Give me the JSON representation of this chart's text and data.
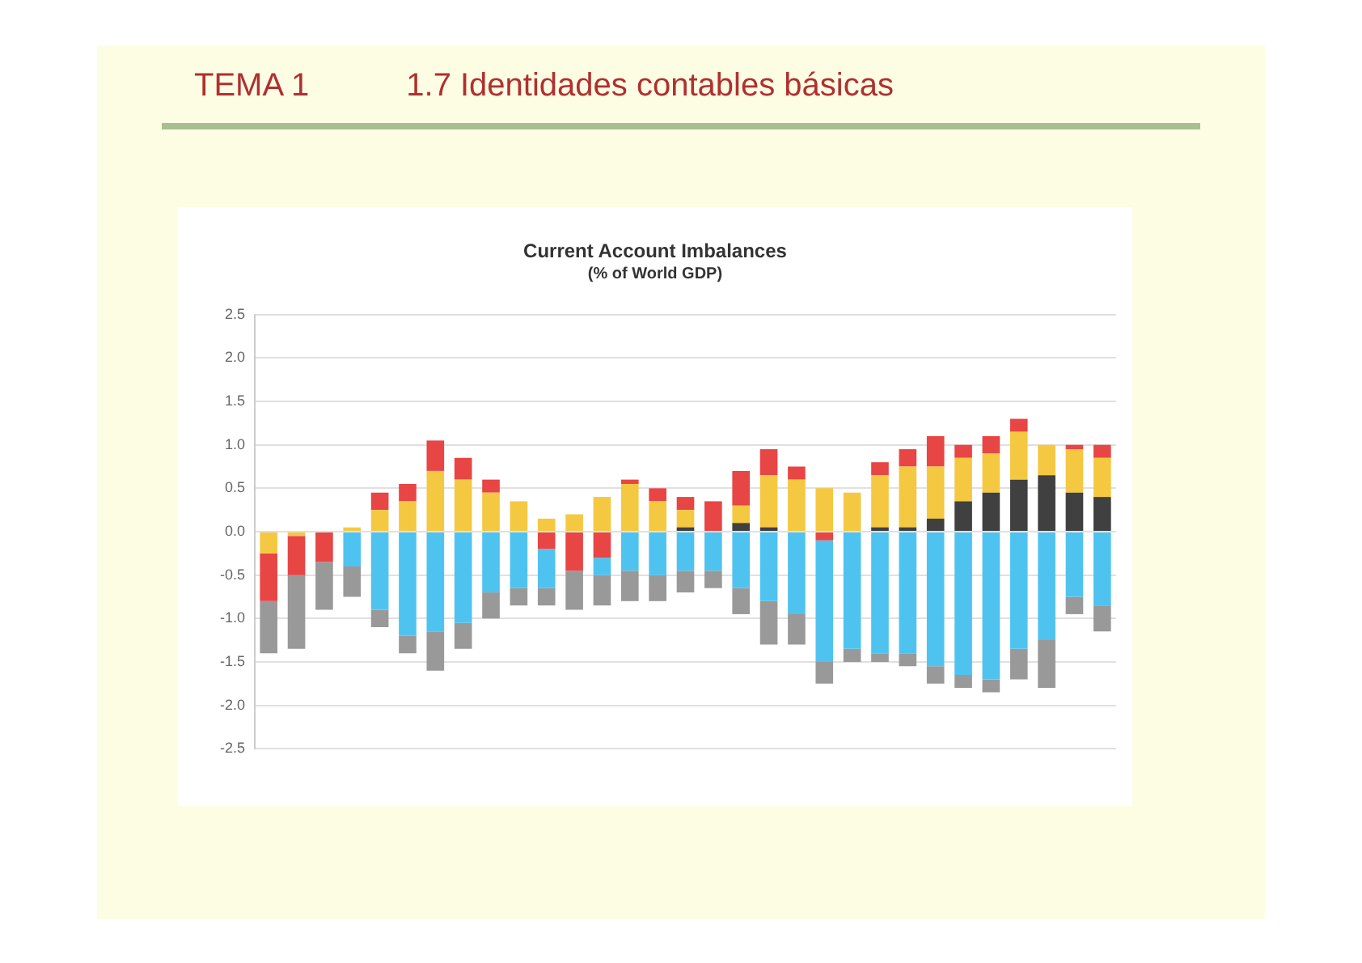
{
  "chart_data": {
    "type": "bar",
    "title": "Current Account Imbalances",
    "subtitle": "(% of World GDP)",
    "annotations": [
      "TEMA 1",
      "1.7 Identidades contables básicas"
    ],
    "stacked": true,
    "grid": "y",
    "ylim": [
      -2.5,
      2.5
    ],
    "yticks": [
      -2.5,
      {
        "value": -2,
        "label": "-2.0"
      },
      -1.5,
      {
        "value": -1,
        "label": "-1.0"
      },
      -0.5,
      {
        "value": 0,
        "label": "0.0"
      },
      0.5,
      {
        "value": 1,
        "label": "1.0"
      },
      1.5,
      {
        "value": 2,
        "label": "2.0"
      },
      2.5
    ],
    "categories": [
      null,
      null,
      null,
      null,
      null,
      null,
      null,
      null,
      null,
      null,
      null,
      null,
      null,
      null,
      null,
      null,
      null,
      null,
      null,
      null,
      null,
      null,
      null,
      null,
      null,
      null,
      null,
      null,
      null,
      null,
      null
    ],
    "series": [
      {
        "color": "#404040",
        "values": [
          null,
          null,
          null,
          null,
          null,
          null,
          null,
          null,
          null,
          null,
          null,
          null,
          null,
          null,
          null,
          0.05,
          null,
          0.1,
          0.05,
          null,
          null,
          null,
          0.05,
          0.05,
          0.15,
          0.35,
          0.45,
          0.6,
          0.65,
          0.45,
          0.4
        ]
      },
      {
        "color": "#f5c842",
        "values": [
          -0.25,
          -0.05,
          null,
          0.05,
          0.25,
          0.35,
          0.7,
          0.6,
          0.45,
          0.35,
          0.15,
          0.2,
          0.4,
          0.55,
          0.35,
          0.2,
          null,
          0.2,
          0.6,
          0.6,
          0.5,
          0.45,
          0.6,
          0.7,
          0.6,
          0.5,
          0.45,
          0.55,
          0.35,
          0.5,
          0.45
        ]
      },
      {
        "color": "#e84545",
        "values": [
          -0.55,
          -0.45,
          -0.35,
          null,
          0.2,
          0.2,
          0.35,
          0.25,
          0.15,
          null,
          -0.2,
          -0.45,
          -0.3,
          0.05,
          0.15,
          0.15,
          0.35,
          0.4,
          0.3,
          0.15,
          -0.1,
          null,
          0.15,
          0.2,
          0.35,
          0.15,
          0.2,
          0.15,
          null,
          0.05,
          0.15
        ]
      },
      {
        "color": "#4fc3f0",
        "values": [
          null,
          null,
          null,
          -0.4,
          -0.9,
          -1.2,
          -1.15,
          -1.05,
          -0.7,
          -0.65,
          -0.45,
          null,
          -0.2,
          -0.45,
          -0.5,
          -0.45,
          -0.45,
          -0.65,
          -0.8,
          -0.95,
          -1.4,
          -1.35,
          -1.4,
          -1.4,
          -1.55,
          -1.65,
          -1.7,
          -1.35,
          -1.25,
          -0.75,
          -0.85
        ]
      },
      {
        "color": "#999999",
        "values": [
          -0.6,
          -0.85,
          -0.55,
          -0.35,
          -0.2,
          -0.2,
          -0.45,
          -0.3,
          -0.3,
          -0.2,
          -0.2,
          -0.45,
          -0.35,
          -0.35,
          -0.3,
          -0.25,
          -0.2,
          -0.3,
          -0.5,
          -0.35,
          -0.25,
          -0.15,
          -0.1,
          -0.15,
          -0.2,
          -0.15,
          -0.15,
          -0.35,
          -0.55,
          -0.2,
          -0.3
        ]
      }
    ]
  }
}
